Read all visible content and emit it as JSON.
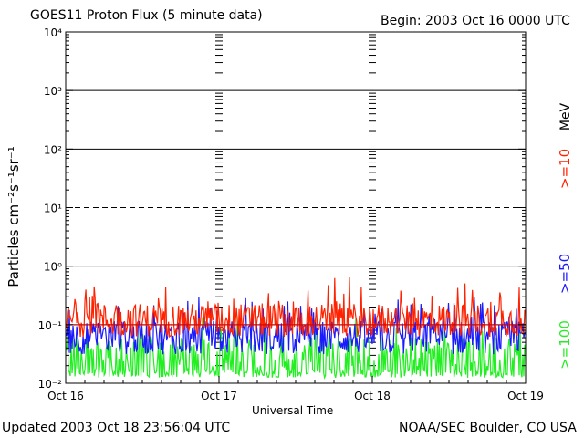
{
  "header": {
    "title": "GOES11 Proton Flux (5 minute data)",
    "begin": "Begin: 2003 Oct 16 0000 UTC"
  },
  "footer": {
    "updated": "Updated 2003 Oct 18 23:56:04 UTC",
    "credit": "NOAA/SEC Boulder, CO USA"
  },
  "chart_data": {
    "type": "line",
    "xlabel": "Universal Time",
    "ylabel": "Particles cm⁻²s⁻¹sr⁻¹",
    "x_ticks": [
      "Oct 16",
      "Oct 17",
      "Oct 18",
      "Oct 19"
    ],
    "y_ticks": [
      "10⁻²",
      "10⁻¹",
      "10⁰",
      "10¹",
      "10²",
      "10³",
      "10⁴"
    ],
    "y_scale": "log",
    "ylim": [
      0.01,
      10000
    ],
    "xlim": [
      "2003-10-16 00:00",
      "2003-10-19 00:00"
    ],
    "grid": {
      "horizontal": true,
      "dashed_at": [
        10
      ],
      "threshold_line": 0.1
    },
    "unit_label": "MeV",
    "series": [
      {
        "name": ">=10",
        "color": "#ff2200",
        "base": 0.12,
        "spread": 1.6
      },
      {
        "name": ">=50",
        "color": "#1a1aff",
        "base": 0.06,
        "spread": 1.6
      },
      {
        "name": ">=100",
        "color": "#22ee22",
        "base": 0.028,
        "spread": 1.8
      }
    ],
    "threshold_color": "#cc0000"
  }
}
